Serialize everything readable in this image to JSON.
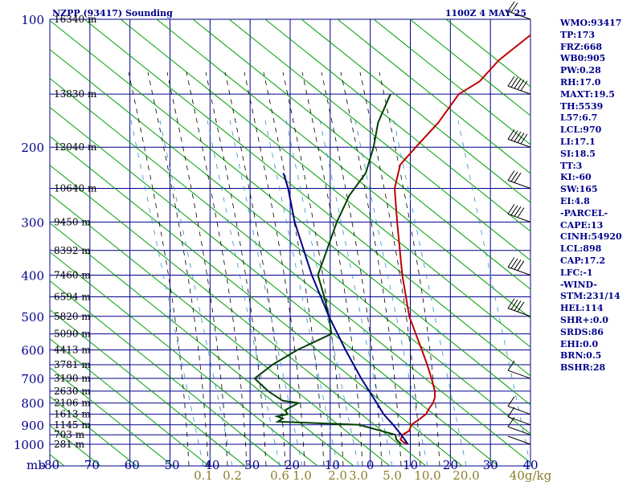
{
  "header": {
    "station": "NZPP (93417) Sounding",
    "time": "1100Z  4 MAY 25"
  },
  "indices": [
    "WMO:93417",
    "TP:173",
    "FRZ:668",
    "WB0:905",
    "PW:0.28",
    "RH:17.0",
    "MAXT:19.5",
    "TH:5539",
    "L57:6.7",
    "LCL:970",
    "LI:17.1",
    "SI:18.5",
    "TT:3",
    "KI:-60",
    "SW:165",
    "EI:4.8",
    "-PARCEL-",
    "CAPE:13",
    "CINH:54920",
    "LCL:898",
    "CAP:17.2",
    "LFC:-1",
    "-WIND-",
    "STM:231/14",
    "HEL:114",
    "SHR+:0.0",
    "SRDS:86",
    "EHI:0.0",
    "BRN:0.5",
    "BSHR:28"
  ],
  "colors": {
    "background": "#ffffff",
    "grid": "#00008b",
    "dry_adiabat": "#00a000",
    "moist_adiabat": "#000000",
    "mixing_ratio": "#2a8fd0",
    "temperature": "#c00000",
    "dewpoint": "#004000",
    "parcel": "#00008b",
    "wind_barb": "#000000"
  },
  "chart_data": {
    "type": "line",
    "title": "NZPP (93417) Sounding",
    "subtitle": "1100Z  4 MAY 25",
    "x_axis": {
      "unit_label": "mb",
      "ticks": [
        "-80",
        "-70",
        "-60",
        "-50",
        "-40",
        "-30",
        "-20",
        "-10",
        "0",
        "10",
        "20",
        "30",
        "40"
      ],
      "range": [
        -80,
        40
      ]
    },
    "y_axis": {
      "scale": "log-pressure",
      "ticks": [
        "100",
        "200",
        "300",
        "400",
        "500",
        "600",
        "700",
        "800",
        "900",
        "1000"
      ],
      "range": [
        1050,
        100
      ]
    },
    "height_labels": [
      {
        "p": 100,
        "label": "16340 m"
      },
      {
        "p": 150,
        "label": "13830 m"
      },
      {
        "p": 200,
        "label": "12040 m"
      },
      {
        "p": 250,
        "label": "10640 m"
      },
      {
        "p": 300,
        "label": "9450 m"
      },
      {
        "p": 350,
        "label": "8392 m"
      },
      {
        "p": 400,
        "label": "7460 m"
      },
      {
        "p": 450,
        "label": "6594 m"
      },
      {
        "p": 500,
        "label": "5820 m"
      },
      {
        "p": 550,
        "label": "5090 m"
      },
      {
        "p": 600,
        "label": "4413 m"
      },
      {
        "p": 650,
        "label": "3781 m"
      },
      {
        "p": 700,
        "label": "3190 m"
      },
      {
        "p": 750,
        "label": "2630 m"
      },
      {
        "p": 800,
        "label": "2106 m"
      },
      {
        "p": 850,
        "label": "1613 m"
      },
      {
        "p": 900,
        "label": "1145 m"
      },
      {
        "p": 950,
        "label": "703 m"
      },
      {
        "p": 1000,
        "label": "281 m"
      }
    ],
    "mixing_ratio_labels": [
      "0.1",
      "0.2",
      "0.6",
      "1.0",
      "2.0",
      "3.0",
      "5.0",
      "10.0",
      "20.0",
      "40g/kg"
    ],
    "series": [
      {
        "name": "temperature",
        "points": [
          [
            1000,
            9.5
          ],
          [
            990,
            8.0
          ],
          [
            975,
            6.5
          ],
          [
            950,
            5.8
          ],
          [
            930,
            6.5
          ],
          [
            900,
            5.5
          ],
          [
            880,
            6.0
          ],
          [
            850,
            6.5
          ],
          [
            820,
            5.8
          ],
          [
            800,
            5.5
          ],
          [
            775,
            4.5
          ],
          [
            750,
            3.0
          ],
          [
            700,
            -1.0
          ],
          [
            650,
            -5.5
          ],
          [
            600,
            -10.5
          ],
          [
            550,
            -16.0
          ],
          [
            500,
            -22.0
          ],
          [
            400,
            -34.0
          ],
          [
            300,
            -48.5
          ],
          [
            250,
            -57.5
          ],
          [
            220,
            -62.0
          ],
          [
            200,
            -62.5
          ],
          [
            175,
            -63.0
          ],
          [
            150,
            -65.0
          ],
          [
            140,
            -63.0
          ],
          [
            125,
            -63.5
          ],
          [
            110,
            -62.0
          ],
          [
            100,
            -61.0
          ]
        ]
      },
      {
        "name": "dewpoint",
        "points": [
          [
            1000,
            7.8
          ],
          [
            975,
            5.5
          ],
          [
            950,
            4.0
          ],
          [
            900,
            -7.5
          ],
          [
            885,
            -28.5
          ],
          [
            870,
            -28.0
          ],
          [
            860,
            -30.0
          ],
          [
            850,
            -28.0
          ],
          [
            830,
            -29.5
          ],
          [
            800,
            -28.0
          ],
          [
            790,
            -32.5
          ],
          [
            750,
            -38.5
          ],
          [
            700,
            -45.0
          ],
          [
            650,
            -44.0
          ],
          [
            600,
            -41.5
          ],
          [
            550,
            -37.0
          ],
          [
            500,
            -42.0
          ],
          [
            450,
            -48.0
          ],
          [
            400,
            -55.0
          ],
          [
            300,
            -63.5
          ],
          [
            260,
            -67.0
          ],
          [
            230,
            -68.5
          ],
          [
            200,
            -73.0
          ],
          [
            175,
            -78.0
          ],
          [
            150,
            -82.0
          ]
        ]
      },
      {
        "name": "parcel",
        "points": [
          [
            1000,
            9.5
          ],
          [
            950,
            5.5
          ],
          [
            900,
            1.0
          ],
          [
            850,
            -4.0
          ],
          [
            800,
            -8.5
          ],
          [
            700,
            -18.5
          ],
          [
            600,
            -29.5
          ],
          [
            500,
            -42.0
          ],
          [
            400,
            -56.5
          ],
          [
            300,
            -74.0
          ],
          [
            250,
            -84.0
          ],
          [
            230,
            -89.0
          ]
        ]
      }
    ],
    "winds": [
      {
        "p": 1000,
        "speed_kt": 5
      },
      {
        "p": 950,
        "speed_kt": 10
      },
      {
        "p": 900,
        "speed_kt": 15
      },
      {
        "p": 850,
        "speed_kt": 10
      },
      {
        "p": 700,
        "speed_kt": 10
      },
      {
        "p": 500,
        "speed_kt": 40
      },
      {
        "p": 400,
        "speed_kt": 45
      },
      {
        "p": 300,
        "speed_kt": 40
      },
      {
        "p": 250,
        "speed_kt": 35
      },
      {
        "p": 200,
        "speed_kt": 55
      },
      {
        "p": 150,
        "speed_kt": 55
      },
      {
        "p": 100,
        "speed_kt": 20
      }
    ],
    "grid": true
  }
}
